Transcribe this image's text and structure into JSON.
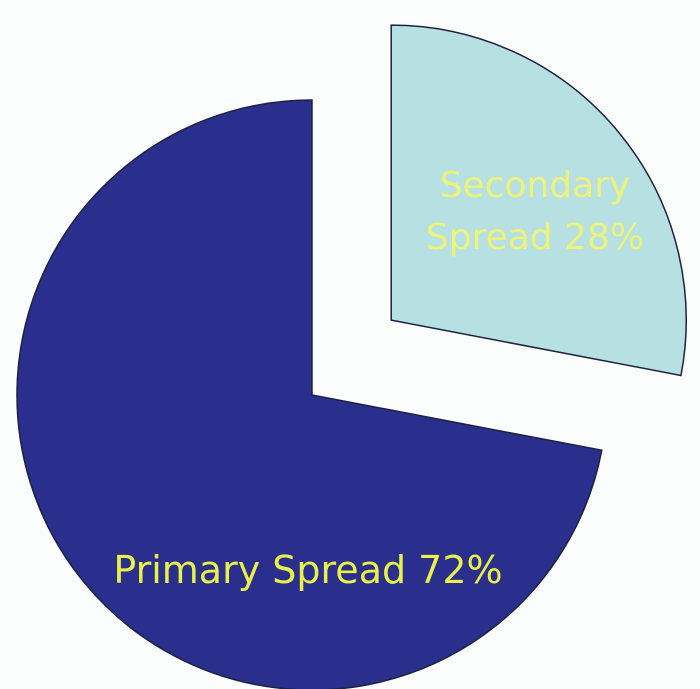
{
  "chart_data": {
    "type": "pie",
    "title": "",
    "slices": [
      {
        "label_lines": [
          "Primary Spread 72%"
        ],
        "value": 72,
        "color": "#2a2e8c",
        "label_color": "#e8f04a"
      },
      {
        "label_lines": [
          "Secondary",
          "Spread 28%"
        ],
        "value": 28,
        "color": "#b6e0e2",
        "label_color": "#ecf27a",
        "exploded": true
      }
    ],
    "legend": "none"
  }
}
